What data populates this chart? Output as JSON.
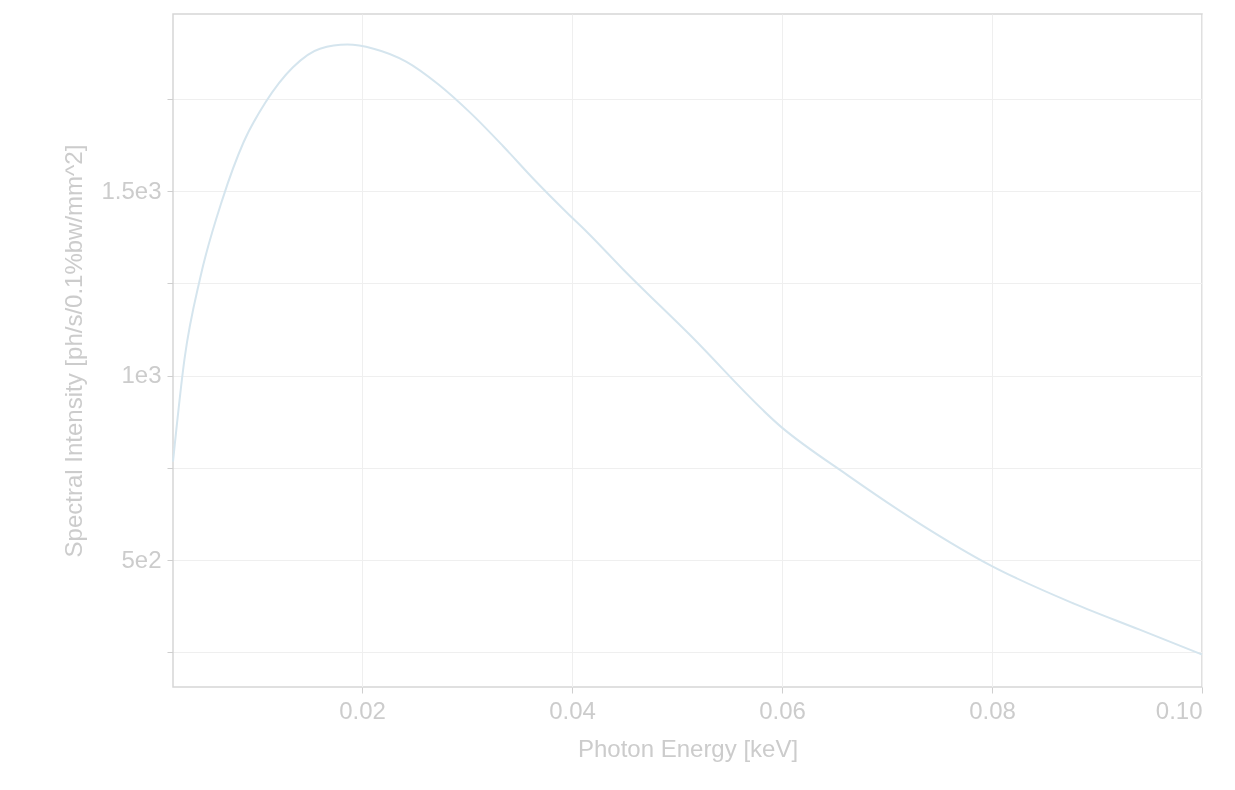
{
  "chart_data": {
    "type": "line",
    "xlabel": "Photon Energy [keV]",
    "ylabel": "Spectral Intensity [ph/s/0.1%bw/mm^2]",
    "x": [
      0.002,
      0.0031,
      0.0046,
      0.0067,
      0.0087,
      0.0108,
      0.0134,
      0.016,
      0.0186,
      0.0211,
      0.0242,
      0.0272,
      0.0304,
      0.0334,
      0.0365,
      0.0395,
      0.0414,
      0.0449,
      0.0511,
      0.06,
      0.0663,
      0.0731,
      0.0799,
      0.0878,
      0.094,
      0.1
    ],
    "series": [
      {
        "color": "#d5e5ee",
        "values": [
          767,
          1046,
          1266,
          1477,
          1631,
          1740,
          1835,
          1886,
          1897,
          1886,
          1851,
          1791,
          1710,
          1623,
          1528,
          1442,
          1390,
          1287,
          1114,
          859,
          729,
          599,
          485,
          382,
          312,
          244
        ]
      }
    ],
    "xlim": [
      0.002,
      0.1
    ],
    "ylim": [
      156,
      1980
    ],
    "xticks": [
      0.02,
      0.04,
      0.06,
      0.08,
      {
        "value": 0.1,
        "label": "0.10"
      }
    ],
    "yticks": [
      {
        "value": 250,
        "label": null
      },
      {
        "value": 500,
        "label": "5e2"
      },
      {
        "value": 750,
        "label": null
      },
      {
        "value": 1000,
        "label": "1e3"
      },
      {
        "value": 1250,
        "label": null
      },
      {
        "value": 1500,
        "label": "1.5e3"
      },
      {
        "value": 1750,
        "label": null
      }
    ],
    "grid": true,
    "marker": "none",
    "line_style": "solid"
  }
}
